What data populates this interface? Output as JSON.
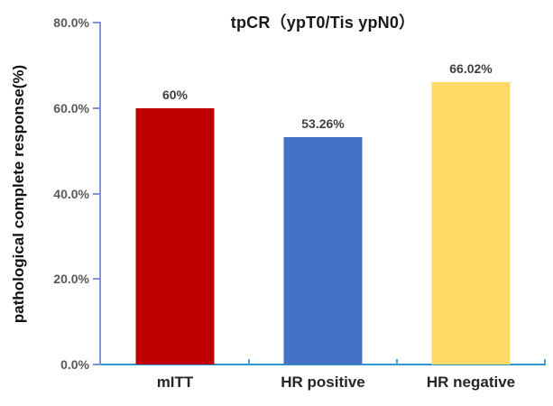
{
  "chart_data": {
    "type": "bar",
    "title": "tpCR（ypT0/Tis ypN0）",
    "ylabel": "pathological complete response(%)",
    "xlabel": "",
    "categories": [
      "mITT",
      "HR positive",
      "HR negative"
    ],
    "values": [
      60,
      53.26,
      66.02
    ],
    "data_labels": [
      "60%",
      "53.26%",
      "66.02%"
    ],
    "bar_colors": [
      "#c00000",
      "#4472c4",
      "#ffd966"
    ],
    "ylim": [
      0,
      80
    ],
    "yticks": [
      0,
      20,
      40,
      60,
      80
    ],
    "ytick_labels": [
      "0.0%",
      "20.0%",
      "40.0%",
      "60.0%",
      "80.0%"
    ],
    "grid": false,
    "legend_position": "none"
  },
  "colors": {
    "y_axis_line": "#7e96d8",
    "x_axis_line": "#2e96d1",
    "x_tick": "#56a0d3",
    "tick_label": "#595959",
    "data_label": "#404040",
    "category_label": "#262626",
    "title_color": "#1a1a1a"
  }
}
